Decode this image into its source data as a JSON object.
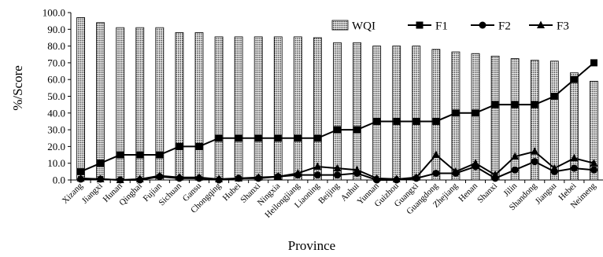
{
  "chart_data": {
    "type": "bar",
    "title": "",
    "xlabel": "Province",
    "ylabel": "%/Score",
    "ylim": [
      0,
      100
    ],
    "ytick_step": 10,
    "ytick_labels": [
      "0.0",
      "10.0",
      "20.0",
      "30.0",
      "40.0",
      "50.0",
      "60.0",
      "70.0",
      "80.0",
      "90.0",
      "100.0"
    ],
    "grid": false,
    "legend_position": "top-right",
    "categories": [
      "Xizang",
      "Jiangxi",
      "Hunan",
      "Qinghai",
      "Fujian",
      "Sichuan",
      "Gansu",
      "Chongqing",
      "Hubei",
      "Shanxi",
      "Ningxia",
      "Heilongjiang",
      "Liaoning",
      "Beijing",
      "Anhui",
      "Yunnan",
      "Guizhou",
      "Guangxi",
      "Guangdong",
      "Zhejiang",
      "Henan",
      "Shanxi",
      "Jilin",
      "Shandong",
      "Jiangsu",
      "Hebei",
      "Neimeng"
    ],
    "series": [
      {
        "name": "WQI",
        "kind": "bar",
        "pattern": "dotted",
        "values": [
          97,
          94,
          91,
          91,
          91,
          88,
          88,
          85.5,
          85.5,
          85.5,
          85.5,
          85.5,
          85,
          82,
          82,
          80,
          80,
          80,
          78,
          76.5,
          75.5,
          74,
          72.5,
          71.5,
          71,
          64,
          59
        ]
      },
      {
        "name": "F1",
        "kind": "line",
        "marker": "square",
        "values": [
          5,
          10,
          15,
          15,
          15,
          20,
          20,
          25,
          25,
          25,
          25,
          25,
          25,
          30,
          30,
          35,
          35,
          35,
          35,
          40,
          40,
          45,
          45,
          45,
          50,
          60,
          70
        ]
      },
      {
        "name": "F2",
        "kind": "line",
        "marker": "circle",
        "values": [
          0.5,
          0.5,
          0,
          0,
          2,
          1,
          1,
          0,
          1,
          1,
          2,
          3,
          3,
          3,
          4,
          0,
          0,
          1,
          4,
          4,
          8,
          1,
          6,
          11,
          5,
          7,
          6
        ]
      },
      {
        "name": "F3",
        "kind": "line",
        "marker": "triangle",
        "values": [
          1,
          0.5,
          0,
          0.5,
          2.5,
          1.5,
          1.5,
          0.5,
          1,
          1.5,
          2,
          4,
          8,
          7,
          6,
          1,
          0.5,
          1.5,
          15,
          5,
          10,
          3,
          14,
          17,
          7,
          13,
          10
        ]
      }
    ],
    "colors": {
      "bar_fill": "#ffffff",
      "bar_stroke": "#000000",
      "bar_dots": "#000000",
      "line": "#000000"
    }
  }
}
